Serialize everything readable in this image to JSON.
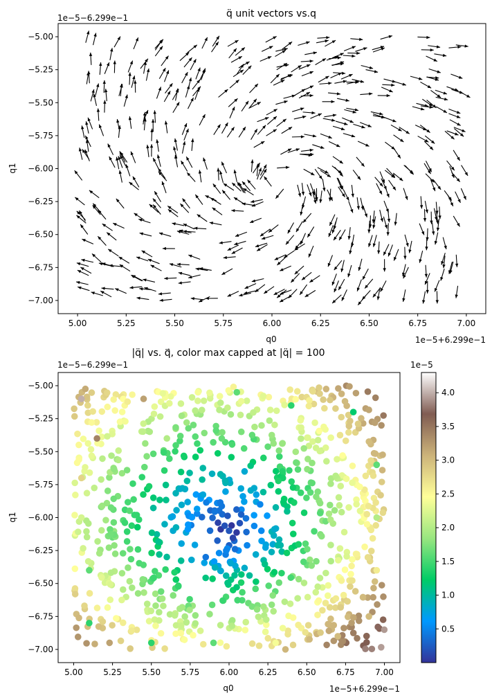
{
  "chart_data": [
    {
      "type": "quiver",
      "title": "q̈ unit vectors vs.q",
      "xlabel": "q0",
      "ylabel": "q1",
      "x_offset_label": "1e−5+6.299e−1",
      "y_offset_label": "1e−5−6.299e−1",
      "xlim": [
        4.9,
        7.1
      ],
      "ylim": [
        -7.1,
        -4.9
      ],
      "x_ticks": [
        5.0,
        5.25,
        5.5,
        5.75,
        6.0,
        6.25,
        6.5,
        6.75,
        7.0
      ],
      "x_tick_labels": [
        "5.00",
        "5.25",
        "5.50",
        "5.75",
        "6.00",
        "6.25",
        "6.50",
        "6.75",
        "7.00"
      ],
      "y_ticks": [
        -5.0,
        -5.25,
        -5.5,
        -5.75,
        -6.0,
        -6.25,
        -6.5,
        -6.75,
        -7.0
      ],
      "y_tick_labels": [
        "−5.00",
        "−5.25",
        "−5.50",
        "−5.75",
        "−6.00",
        "−6.25",
        "−6.50",
        "−6.75",
        "−7.00"
      ],
      "field": {
        "description": "unit vectors of acceleration, pointing roughly along a swirl",
        "center": [
          6.0,
          -6.1
        ],
        "sample_points": [
          [
            5.05,
            -5.0
          ],
          [
            5.1,
            -5.4
          ],
          [
            5.05,
            -5.9
          ],
          [
            5.1,
            -6.3
          ],
          [
            5.05,
            -6.7
          ],
          [
            5.1,
            -6.95
          ],
          [
            5.3,
            -5.05
          ],
          [
            5.35,
            -5.6
          ],
          [
            5.3,
            -6.1
          ],
          [
            5.35,
            -6.5
          ],
          [
            5.3,
            -6.9
          ],
          [
            5.55,
            -5.15
          ],
          [
            5.55,
            -5.7
          ],
          [
            5.55,
            -6.3
          ],
          [
            5.55,
            -6.8
          ],
          [
            5.8,
            -5.05
          ],
          [
            5.8,
            -5.5
          ],
          [
            5.8,
            -6.6
          ],
          [
            5.8,
            -6.95
          ],
          [
            6.05,
            -5.1
          ],
          [
            6.05,
            -5.5
          ],
          [
            6.05,
            -6.7
          ],
          [
            6.05,
            -6.95
          ],
          [
            6.3,
            -5.05
          ],
          [
            6.3,
            -5.6
          ],
          [
            6.3,
            -6.2
          ],
          [
            6.3,
            -6.7
          ],
          [
            6.55,
            -5.1
          ],
          [
            6.55,
            -5.6
          ],
          [
            6.55,
            -6.1
          ],
          [
            6.55,
            -6.6
          ],
          [
            6.55,
            -6.95
          ],
          [
            6.8,
            -5.1
          ],
          [
            6.8,
            -5.5
          ],
          [
            6.8,
            -6.0
          ],
          [
            6.8,
            -6.5
          ],
          [
            6.8,
            -6.9
          ],
          [
            6.95,
            -5.3
          ],
          [
            6.95,
            -5.9
          ],
          [
            6.95,
            -6.4
          ],
          [
            6.95,
            -6.7
          ]
        ]
      }
    },
    {
      "type": "scatter",
      "title": "|q̈| vs. q⃗, color max capped at |q̈| = 100",
      "xlabel": "q0",
      "ylabel": "q1",
      "x_offset_label": "1e−5+6.299e−1",
      "y_offset_label": "1e−5−6.299e−1",
      "xlim": [
        4.9,
        7.1
      ],
      "ylim": [
        -7.1,
        -4.9
      ],
      "x_ticks": [
        5.0,
        5.25,
        5.5,
        5.75,
        6.0,
        6.25,
        6.5,
        6.75,
        7.0
      ],
      "x_tick_labels": [
        "5.00",
        "5.25",
        "5.50",
        "5.75",
        "6.00",
        "6.25",
        "6.50",
        "6.75",
        "7.00"
      ],
      "y_ticks": [
        -5.0,
        -5.25,
        -5.5,
        -5.75,
        -6.0,
        -6.25,
        -6.5,
        -6.75,
        -7.0
      ],
      "y_tick_labels": [
        "−5.00",
        "−5.25",
        "−5.50",
        "−5.75",
        "−6.00",
        "−6.25",
        "−6.50",
        "−6.75",
        "−7.00"
      ],
      "colorbar": {
        "colormap": "terrain",
        "min": 0.0,
        "max": 4.3,
        "offset_label": "1e−5",
        "ticks": [
          0.5,
          1.0,
          1.5,
          2.0,
          2.5,
          3.0,
          3.5,
          4.0
        ],
        "tick_labels": [
          "0.5",
          "1.0",
          "1.5",
          "2.0",
          "2.5",
          "3.0",
          "3.5",
          "4.0"
        ],
        "colors": [
          "#333399",
          "#0099ff",
          "#00cc66",
          "#99e680",
          "#ffff99",
          "#ccb37a",
          "#805c52",
          "#ffffff"
        ]
      },
      "field": {
        "description": "magnitude grows with distance from the center (~6.0, -6.1)",
        "center": [
          6.0,
          -6.1
        ],
        "sample_values": [
          {
            "x": 5.05,
            "y": -5.1,
            "v": 4.0
          },
          {
            "x": 5.15,
            "y": -5.4,
            "v": 3.4
          },
          {
            "x": 5.05,
            "y": -5.7,
            "v": 2.8
          },
          {
            "x": 5.05,
            "y": -6.0,
            "v": 2.2
          },
          {
            "x": 5.1,
            "y": -6.4,
            "v": 1.6
          },
          {
            "x": 5.1,
            "y": -6.8,
            "v": 1.4
          },
          {
            "x": 5.45,
            "y": -5.1,
            "v": 3.2
          },
          {
            "x": 5.6,
            "y": -5.4,
            "v": 2.0
          },
          {
            "x": 5.8,
            "y": -5.05,
            "v": 2.4
          },
          {
            "x": 6.05,
            "y": -5.05,
            "v": 1.6
          },
          {
            "x": 6.4,
            "y": -5.15,
            "v": 1.4
          },
          {
            "x": 6.8,
            "y": -5.2,
            "v": 1.2
          },
          {
            "x": 6.95,
            "y": -5.6,
            "v": 1.6
          },
          {
            "x": 6.95,
            "y": -6.0,
            "v": 2.0
          },
          {
            "x": 6.95,
            "y": -6.4,
            "v": 2.6
          },
          {
            "x": 6.9,
            "y": -6.75,
            "v": 3.0
          },
          {
            "x": 6.7,
            "y": -6.9,
            "v": 3.0
          },
          {
            "x": 6.3,
            "y": -6.95,
            "v": 2.4
          },
          {
            "x": 5.9,
            "y": -6.95,
            "v": 1.6
          },
          {
            "x": 5.5,
            "y": -6.95,
            "v": 1.4
          },
          {
            "x": 6.0,
            "y": -6.1,
            "v": 0.2
          },
          {
            "x": 5.85,
            "y": -6.3,
            "v": 0.4
          },
          {
            "x": 6.2,
            "y": -5.9,
            "v": 0.5
          },
          {
            "x": 6.1,
            "y": -5.65,
            "v": 0.8
          }
        ]
      }
    }
  ]
}
